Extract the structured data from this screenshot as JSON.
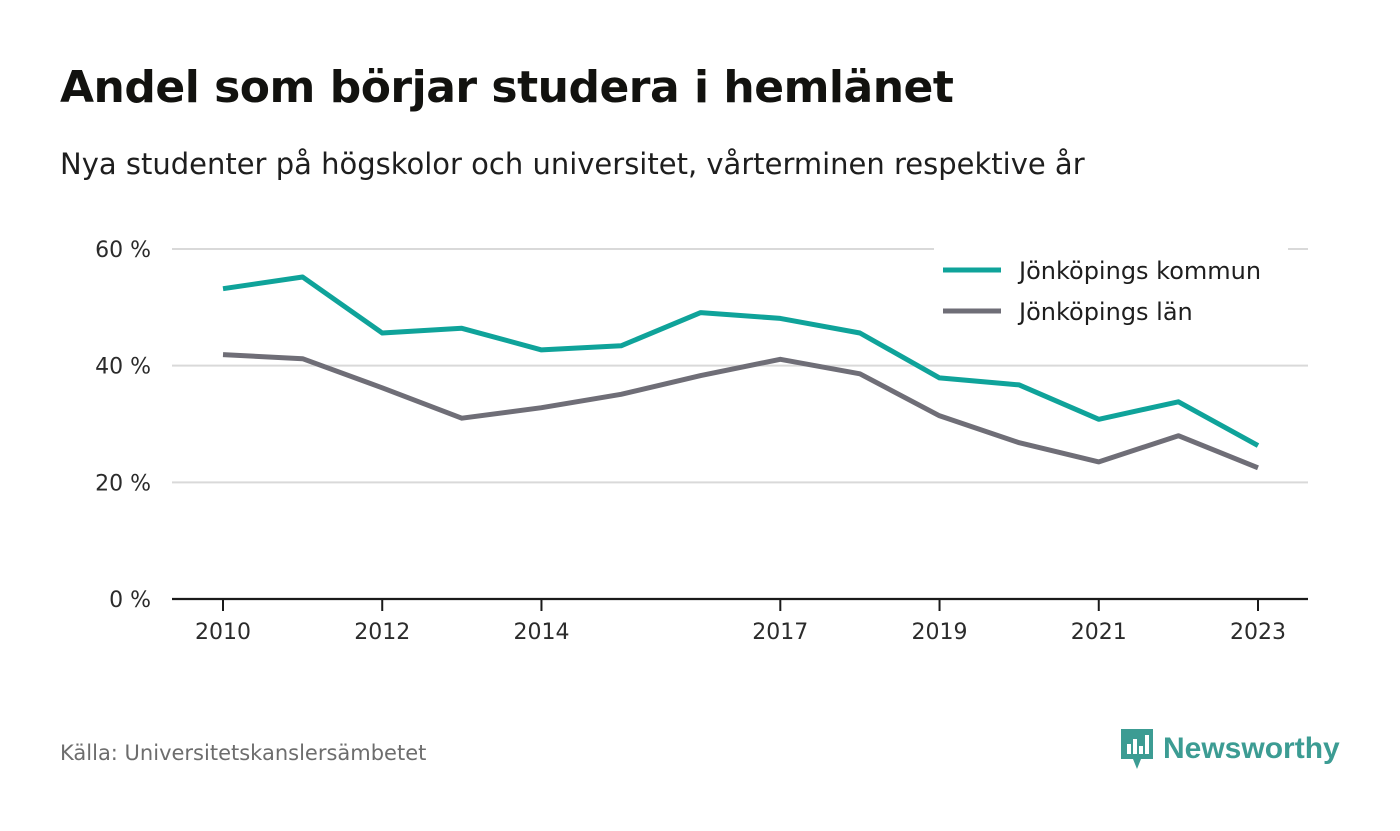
{
  "title": "Andel som börjar studera i hemlänet",
  "subtitle": "Nya studenter på högskolor och universitet, vårterminen respektive år",
  "source": "Källa: Universitetskanslersämbetet",
  "brand": "Newsworthy",
  "colors": {
    "kommun": "#0fa39a",
    "lan": "#6f6e77",
    "grid": "#d9d9d9",
    "axis": "#1a1a1a",
    "brand": "#3c9c93"
  },
  "chart_data": {
    "type": "line",
    "x": [
      2010,
      2011,
      2012,
      2013,
      2014,
      2015,
      2016,
      2017,
      2018,
      2019,
      2020,
      2021,
      2022,
      2023
    ],
    "x_tick_labels": [
      "2010",
      "2012",
      "2014",
      "2017",
      "2019",
      "2021",
      "2023"
    ],
    "y_ticks": [
      0,
      20,
      40,
      60
    ],
    "y_tick_labels": [
      "0 %",
      "20 %",
      "40 %",
      "60 %"
    ],
    "ylim": [
      0,
      60
    ],
    "grid": true,
    "legend_position": "top-right",
    "series": [
      {
        "name": "Jönköpings kommun",
        "color": "#0fa39a",
        "values": [
          53.2,
          55.2,
          45.6,
          46.4,
          42.7,
          43.4,
          49.1,
          48.1,
          45.6,
          37.9,
          36.7,
          30.8,
          33.8,
          26.3
        ]
      },
      {
        "name": "Jönköpings län",
        "color": "#6f6e77",
        "values": [
          41.9,
          41.2,
          36.2,
          31.0,
          32.8,
          35.1,
          38.3,
          41.1,
          38.6,
          31.4,
          26.8,
          23.5,
          28.0,
          22.5
        ]
      }
    ]
  }
}
